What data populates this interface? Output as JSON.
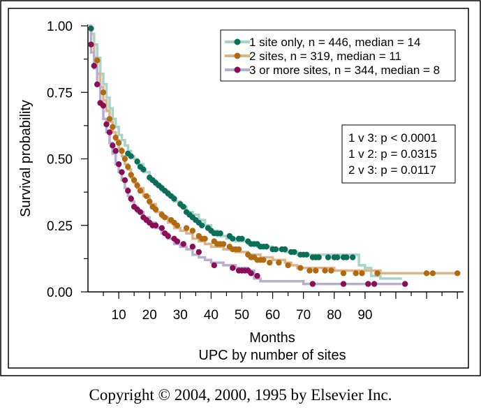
{
  "chart_data": {
    "type": "line",
    "title": "",
    "xlabel": "Months",
    "xlabel2": "UPC by number of sites",
    "ylabel": "Survival probability",
    "xlim": [
      0,
      122
    ],
    "ylim": [
      0,
      1
    ],
    "x_ticks": [
      10,
      20,
      30,
      40,
      50,
      60,
      70,
      80,
      90
    ],
    "y_ticks": [
      0,
      0.25,
      0.5,
      0.75,
      1.0
    ],
    "y_tick_labels": [
      "0.00",
      "0.25",
      "0.50",
      "0.75",
      "1.00"
    ],
    "legend_position": "top-right",
    "grid": false,
    "series": [
      {
        "name": "1 site only, n = 446, median = 14",
        "line_color": "#a8d4c6",
        "marker_color": "#0b6e58",
        "steps": [
          [
            0,
            1.0
          ],
          [
            1,
            0.97
          ],
          [
            2,
            0.93
          ],
          [
            3,
            0.88
          ],
          [
            4,
            0.82
          ],
          [
            5,
            0.78
          ],
          [
            6,
            0.73
          ],
          [
            7,
            0.69
          ],
          [
            8,
            0.65
          ],
          [
            9,
            0.62
          ],
          [
            10,
            0.59
          ],
          [
            11,
            0.57
          ],
          [
            12,
            0.55
          ],
          [
            13,
            0.53
          ],
          [
            14,
            0.51
          ],
          [
            15,
            0.5
          ],
          [
            16,
            0.48
          ],
          [
            18,
            0.45
          ],
          [
            20,
            0.42
          ],
          [
            22,
            0.4
          ],
          [
            24,
            0.38
          ],
          [
            26,
            0.36
          ],
          [
            28,
            0.34
          ],
          [
            30,
            0.32
          ],
          [
            32,
            0.3
          ],
          [
            34,
            0.29
          ],
          [
            36,
            0.27
          ],
          [
            38,
            0.25
          ],
          [
            40,
            0.23
          ],
          [
            42,
            0.21
          ],
          [
            45,
            0.2
          ],
          [
            48,
            0.19
          ],
          [
            52,
            0.18
          ],
          [
            55,
            0.17
          ],
          [
            60,
            0.16
          ],
          [
            64,
            0.15
          ],
          [
            68,
            0.14
          ],
          [
            88,
            0.1
          ],
          [
            90,
            0.09
          ],
          [
            92,
            0.06
          ],
          [
            95,
            0.05
          ],
          [
            102,
            0.05
          ]
        ],
        "markers": [
          [
            1,
            0.99
          ],
          [
            13,
            0.52
          ],
          [
            14,
            0.51
          ],
          [
            16,
            0.49
          ],
          [
            17,
            0.47
          ],
          [
            18,
            0.46
          ],
          [
            20,
            0.43
          ],
          [
            21,
            0.42
          ],
          [
            22,
            0.41
          ],
          [
            23,
            0.4
          ],
          [
            24,
            0.39
          ],
          [
            25,
            0.38
          ],
          [
            26,
            0.37
          ],
          [
            27,
            0.36
          ],
          [
            28,
            0.35
          ],
          [
            30,
            0.33
          ],
          [
            31,
            0.32
          ],
          [
            32,
            0.3
          ],
          [
            33,
            0.29
          ],
          [
            34,
            0.28
          ],
          [
            35,
            0.27
          ],
          [
            36,
            0.26
          ],
          [
            37,
            0.25
          ],
          [
            39,
            0.24
          ],
          [
            40,
            0.23
          ],
          [
            41,
            0.22
          ],
          [
            42,
            0.22
          ],
          [
            43,
            0.22
          ],
          [
            46,
            0.21
          ],
          [
            47,
            0.2
          ],
          [
            49,
            0.2
          ],
          [
            50,
            0.2
          ],
          [
            52,
            0.19
          ],
          [
            53,
            0.18
          ],
          [
            54,
            0.18
          ],
          [
            55,
            0.18
          ],
          [
            56,
            0.17
          ],
          [
            57,
            0.17
          ],
          [
            58,
            0.17
          ],
          [
            60,
            0.16
          ],
          [
            61,
            0.16
          ],
          [
            63,
            0.16
          ],
          [
            64,
            0.16
          ],
          [
            66,
            0.15
          ],
          [
            67,
            0.15
          ],
          [
            69,
            0.14
          ],
          [
            70,
            0.14
          ],
          [
            71,
            0.14
          ],
          [
            73,
            0.13
          ],
          [
            74,
            0.13
          ],
          [
            75,
            0.13
          ],
          [
            78,
            0.13
          ],
          [
            80,
            0.13
          ],
          [
            81,
            0.13
          ],
          [
            83,
            0.13
          ],
          [
            84,
            0.13
          ],
          [
            86,
            0.13
          ]
        ]
      },
      {
        "name": "2 sites, n = 319, median = 11",
        "line_color": "#d9b48c",
        "marker_color": "#b06a10",
        "steps": [
          [
            0,
            1.0
          ],
          [
            1,
            0.93
          ],
          [
            2,
            0.88
          ],
          [
            3,
            0.82
          ],
          [
            4,
            0.77
          ],
          [
            5,
            0.72
          ],
          [
            6,
            0.68
          ],
          [
            7,
            0.64
          ],
          [
            8,
            0.6
          ],
          [
            9,
            0.57
          ],
          [
            10,
            0.54
          ],
          [
            11,
            0.51
          ],
          [
            12,
            0.48
          ],
          [
            13,
            0.46
          ],
          [
            14,
            0.43
          ],
          [
            15,
            0.41
          ],
          [
            16,
            0.39
          ],
          [
            18,
            0.36
          ],
          [
            20,
            0.33
          ],
          [
            22,
            0.3
          ],
          [
            24,
            0.28
          ],
          [
            26,
            0.26
          ],
          [
            28,
            0.24
          ],
          [
            30,
            0.23
          ],
          [
            32,
            0.22
          ],
          [
            34,
            0.2
          ],
          [
            36,
            0.19
          ],
          [
            38,
            0.18
          ],
          [
            40,
            0.17
          ],
          [
            44,
            0.16
          ],
          [
            48,
            0.15
          ],
          [
            52,
            0.14
          ],
          [
            56,
            0.13
          ],
          [
            60,
            0.12
          ],
          [
            64,
            0.11
          ],
          [
            66,
            0.1
          ],
          [
            68,
            0.09
          ],
          [
            74,
            0.09
          ],
          [
            80,
            0.08
          ],
          [
            90,
            0.08
          ],
          [
            95,
            0.07
          ],
          [
            121,
            0.07
          ]
        ],
        "markers": [
          [
            3,
            0.87
          ],
          [
            5,
            0.75
          ],
          [
            7,
            0.65
          ],
          [
            8,
            0.62
          ],
          [
            9,
            0.58
          ],
          [
            10,
            0.56
          ],
          [
            11,
            0.53
          ],
          [
            12,
            0.5
          ],
          [
            13,
            0.47
          ],
          [
            14,
            0.44
          ],
          [
            15,
            0.42
          ],
          [
            16,
            0.4
          ],
          [
            17,
            0.38
          ],
          [
            19,
            0.36
          ],
          [
            20,
            0.34
          ],
          [
            21,
            0.32
          ],
          [
            22,
            0.31
          ],
          [
            24,
            0.29
          ],
          [
            25,
            0.28
          ],
          [
            27,
            0.27
          ],
          [
            28,
            0.26
          ],
          [
            29,
            0.25
          ],
          [
            32,
            0.24
          ],
          [
            34,
            0.23
          ],
          [
            36,
            0.21
          ],
          [
            37,
            0.2
          ],
          [
            38,
            0.2
          ],
          [
            41,
            0.19
          ],
          [
            42,
            0.18
          ],
          [
            43,
            0.18
          ],
          [
            44,
            0.18
          ],
          [
            46,
            0.17
          ],
          [
            47,
            0.16
          ],
          [
            48,
            0.16
          ],
          [
            49,
            0.16
          ],
          [
            52,
            0.14
          ],
          [
            53,
            0.13
          ],
          [
            54,
            0.13
          ],
          [
            55,
            0.12
          ],
          [
            56,
            0.12
          ],
          [
            57,
            0.12
          ],
          [
            59,
            0.11
          ],
          [
            62,
            0.11
          ],
          [
            65,
            0.1
          ],
          [
            69,
            0.09
          ],
          [
            72,
            0.08
          ],
          [
            74,
            0.08
          ],
          [
            77,
            0.08
          ],
          [
            79,
            0.08
          ],
          [
            83,
            0.07
          ],
          [
            87,
            0.07
          ],
          [
            89,
            0.07
          ],
          [
            94,
            0.07
          ],
          [
            110,
            0.07
          ],
          [
            112,
            0.07
          ],
          [
            120,
            0.07
          ]
        ]
      },
      {
        "name": "3 or more sites, n = 344, median = 8",
        "line_color": "#b8aed2",
        "marker_color": "#8a0d56",
        "steps": [
          [
            0,
            1.0
          ],
          [
            1,
            0.9
          ],
          [
            2,
            0.84
          ],
          [
            3,
            0.78
          ],
          [
            4,
            0.71
          ],
          [
            5,
            0.65
          ],
          [
            6,
            0.6
          ],
          [
            7,
            0.56
          ],
          [
            8,
            0.52
          ],
          [
            9,
            0.48
          ],
          [
            10,
            0.45
          ],
          [
            11,
            0.42
          ],
          [
            12,
            0.39
          ],
          [
            13,
            0.36
          ],
          [
            14,
            0.34
          ],
          [
            15,
            0.32
          ],
          [
            16,
            0.3
          ],
          [
            18,
            0.28
          ],
          [
            20,
            0.26
          ],
          [
            22,
            0.24
          ],
          [
            24,
            0.22
          ],
          [
            26,
            0.2
          ],
          [
            28,
            0.18
          ],
          [
            30,
            0.17
          ],
          [
            32,
            0.16
          ],
          [
            34,
            0.14
          ],
          [
            36,
            0.13
          ],
          [
            38,
            0.12
          ],
          [
            40,
            0.11
          ],
          [
            44,
            0.1
          ],
          [
            48,
            0.09
          ],
          [
            52,
            0.08
          ],
          [
            54,
            0.05
          ],
          [
            56,
            0.04
          ],
          [
            70,
            0.03
          ],
          [
            80,
            0.03
          ],
          [
            90,
            0.03
          ],
          [
            102,
            0.03
          ]
        ],
        "markers": [
          [
            1,
            0.93
          ],
          [
            2,
            0.85
          ],
          [
            3,
            0.78
          ],
          [
            4,
            0.71
          ],
          [
            5,
            0.7
          ],
          [
            6,
            0.63
          ],
          [
            7,
            0.6
          ],
          [
            8,
            0.55
          ],
          [
            9,
            0.53
          ],
          [
            10,
            0.48
          ],
          [
            11,
            0.45
          ],
          [
            12,
            0.42
          ],
          [
            13,
            0.38
          ],
          [
            14,
            0.35
          ],
          [
            15,
            0.32
          ],
          [
            16,
            0.31
          ],
          [
            17,
            0.3
          ],
          [
            18,
            0.28
          ],
          [
            19,
            0.27
          ],
          [
            20,
            0.26
          ],
          [
            21,
            0.25
          ],
          [
            22,
            0.25
          ],
          [
            24,
            0.24
          ],
          [
            25,
            0.22
          ],
          [
            26,
            0.21
          ],
          [
            28,
            0.2
          ],
          [
            29,
            0.19
          ],
          [
            31,
            0.18
          ],
          [
            34,
            0.17
          ],
          [
            36,
            0.15
          ],
          [
            41,
            0.1
          ],
          [
            47,
            0.09
          ],
          [
            49,
            0.08
          ],
          [
            50,
            0.08
          ],
          [
            51,
            0.08
          ],
          [
            52,
            0.08
          ],
          [
            53,
            0.07
          ],
          [
            55,
            0.06
          ],
          [
            73,
            0.03
          ],
          [
            83,
            0.03
          ],
          [
            91,
            0.03
          ],
          [
            93,
            0.03
          ],
          [
            103,
            0.03
          ]
        ]
      }
    ],
    "annotations": [
      "1 v 3: p < 0.0001",
      "1 v 2: p = 0.0315",
      "2 v 3: p = 0.0117"
    ]
  },
  "footer": {
    "copyright": "Copyright © 2004, 2000, 1995 by Elsevier Inc."
  }
}
